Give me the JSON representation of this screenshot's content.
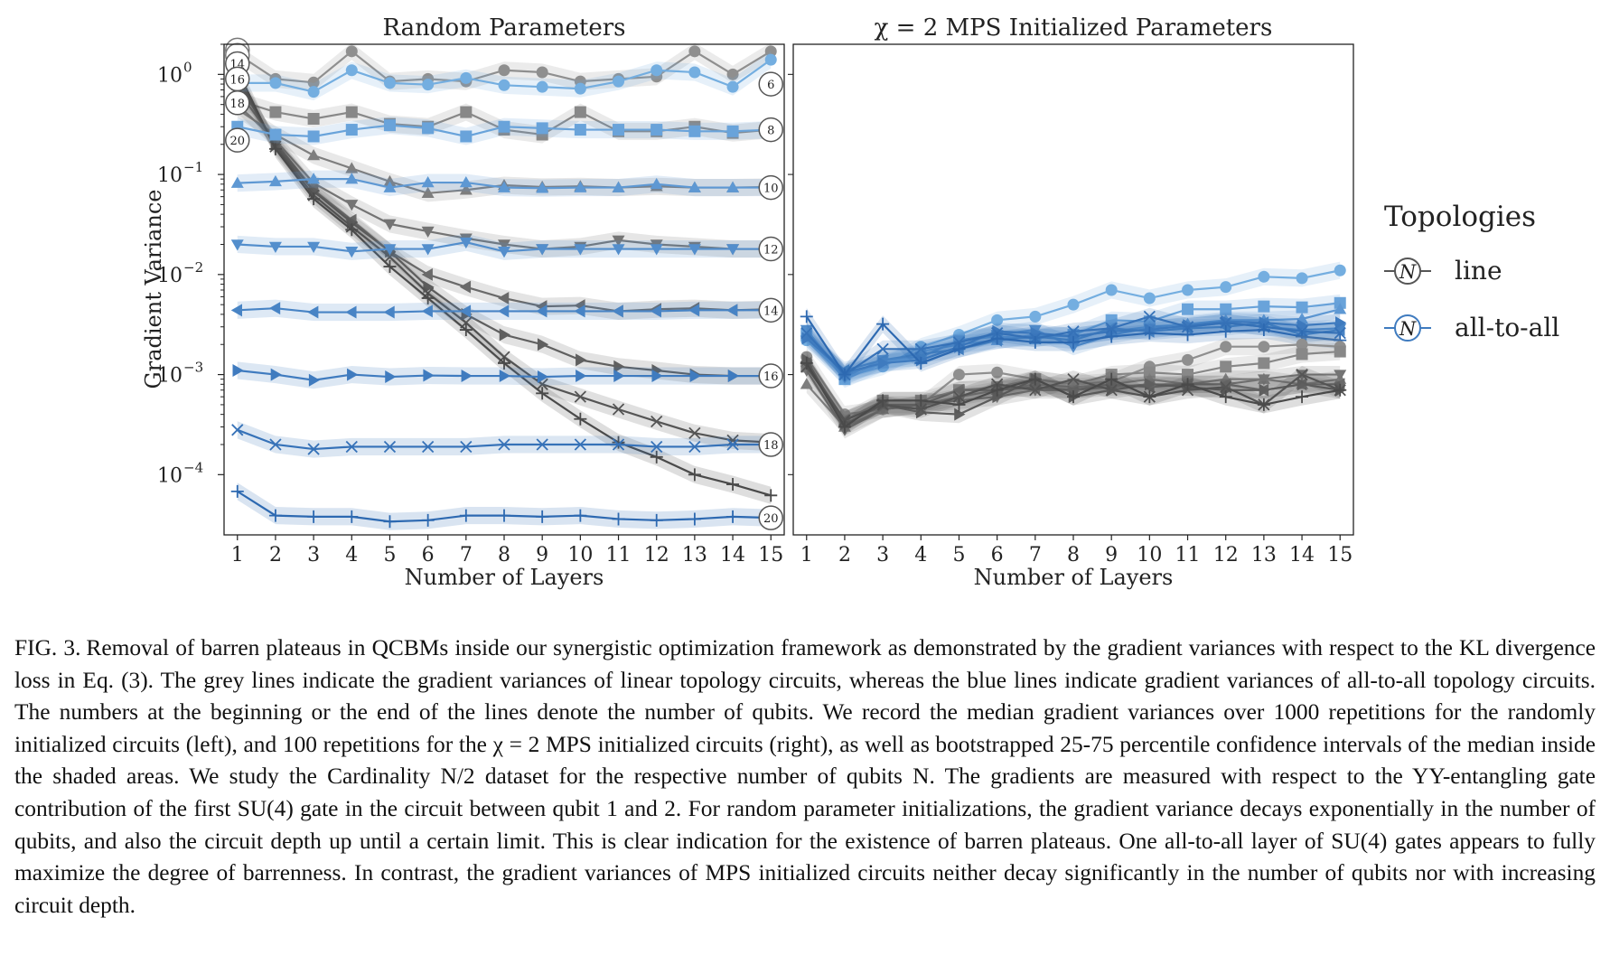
{
  "chart_data": [
    {
      "type": "line",
      "panel": "left",
      "title": "Random Parameters",
      "xlabel": "Number of Layers",
      "ylabel": "Gradient Variance",
      "yscale": "log",
      "ylim": [
        2.5e-05,
        2.0
      ],
      "xlim": [
        0.65,
        15.35
      ],
      "x": [
        1,
        2,
        3,
        4,
        5,
        6,
        7,
        8,
        9,
        10,
        11,
        12,
        13,
        14,
        15
      ],
      "x_tick_labels": [
        "1",
        "2",
        "3",
        "4",
        "5",
        "6",
        "7",
        "8",
        "9",
        "10",
        "11",
        "12",
        "13",
        "14",
        "15"
      ],
      "y_tick_labels": [
        {
          "value": 1,
          "label": "10",
          "exp": "0"
        },
        {
          "value": 0.1,
          "label": "10",
          "exp": "−1"
        },
        {
          "value": 0.01,
          "label": "10",
          "exp": "−2"
        },
        {
          "value": 0.001,
          "label": "10",
          "exp": "−3"
        },
        {
          "value": 0.0001,
          "label": "10",
          "exp": "−4"
        }
      ],
      "series": [
        {
          "name": "line 6",
          "topology": "line",
          "qubits": 6,
          "marker": "circle",
          "values": [
            1.6,
            0.9,
            0.83,
            1.7,
            0.85,
            0.9,
            0.85,
            1.1,
            1.05,
            0.85,
            0.9,
            0.95,
            1.7,
            1.0,
            1.7
          ]
        },
        {
          "name": "line 8",
          "topology": "line",
          "qubits": 8,
          "marker": "square",
          "values": [
            0.55,
            0.42,
            0.36,
            0.42,
            0.32,
            0.3,
            0.42,
            0.28,
            0.25,
            0.42,
            0.27,
            0.27,
            0.3,
            0.26,
            0.28
          ]
        },
        {
          "name": "line 10",
          "topology": "line",
          "qubits": 10,
          "marker": "triangle-up",
          "values": [
            0.45,
            0.25,
            0.155,
            0.115,
            0.085,
            0.065,
            0.07,
            0.078,
            0.075,
            0.076,
            0.074,
            0.076,
            0.074,
            0.074,
            0.075
          ]
        },
        {
          "name": "line 12",
          "topology": "line",
          "qubits": 12,
          "marker": "triangle-down",
          "values": [
            0.5,
            0.22,
            0.082,
            0.05,
            0.032,
            0.027,
            0.023,
            0.02,
            0.018,
            0.019,
            0.022,
            0.02,
            0.019,
            0.018,
            0.018
          ]
        },
        {
          "name": "line 14",
          "topology": "line",
          "qubits": 14,
          "marker": "triangle-left",
          "values": [
            0.7,
            0.21,
            0.07,
            0.035,
            0.017,
            0.01,
            0.0075,
            0.0058,
            0.0048,
            0.0049,
            0.0043,
            0.0045,
            0.0046,
            0.0044,
            0.0045
          ]
        },
        {
          "name": "line 16",
          "topology": "line",
          "qubits": 16,
          "marker": "triangle-right",
          "values": [
            0.85,
            0.2,
            0.068,
            0.033,
            0.017,
            0.0075,
            0.004,
            0.0025,
            0.002,
            0.0014,
            0.0012,
            0.0011,
            0.001,
            0.00097,
            0.00097
          ]
        },
        {
          "name": "line 18",
          "topology": "line",
          "qubits": 18,
          "marker": "x",
          "values": [
            0.95,
            0.19,
            0.062,
            0.03,
            0.015,
            0.0065,
            0.0033,
            0.0015,
            0.0008,
            0.0006,
            0.00045,
            0.00034,
            0.00026,
            0.00022,
            0.00021
          ]
        },
        {
          "name": "line 20",
          "topology": "line",
          "qubits": 20,
          "marker": "plus",
          "values": [
            1.1,
            0.18,
            0.057,
            0.028,
            0.012,
            0.0058,
            0.0028,
            0.0013,
            0.00065,
            0.00036,
            0.00021,
            0.00015,
            0.0001,
            8e-05,
            6.2e-05
          ]
        },
        {
          "name": "all 6",
          "topology": "all-to-all",
          "qubits": 6,
          "marker": "circle",
          "values": [
            0.82,
            0.82,
            0.67,
            1.1,
            0.82,
            0.79,
            0.92,
            0.78,
            0.75,
            0.72,
            0.85,
            1.1,
            1.05,
            0.75,
            1.4
          ]
        },
        {
          "name": "all 8",
          "topology": "all-to-all",
          "qubits": 8,
          "marker": "square",
          "values": [
            0.3,
            0.25,
            0.24,
            0.28,
            0.31,
            0.29,
            0.24,
            0.3,
            0.29,
            0.28,
            0.28,
            0.28,
            0.27,
            0.27,
            0.28
          ]
        },
        {
          "name": "all 10",
          "topology": "all-to-all",
          "qubits": 10,
          "marker": "triangle-up",
          "values": [
            0.082,
            0.085,
            0.09,
            0.09,
            0.074,
            0.083,
            0.083,
            0.074,
            0.073,
            0.074,
            0.074,
            0.08,
            0.074,
            0.074,
            0.074
          ]
        },
        {
          "name": "all 12",
          "topology": "all-to-all",
          "qubits": 12,
          "marker": "triangle-down",
          "values": [
            0.02,
            0.019,
            0.019,
            0.017,
            0.018,
            0.018,
            0.021,
            0.017,
            0.018,
            0.018,
            0.018,
            0.018,
            0.018,
            0.018,
            0.018
          ]
        },
        {
          "name": "all 14",
          "topology": "all-to-all",
          "qubits": 14,
          "marker": "triangle-left",
          "values": [
            0.0044,
            0.0046,
            0.0042,
            0.0042,
            0.0042,
            0.0043,
            0.0043,
            0.0043,
            0.0043,
            0.0043,
            0.0043,
            0.0043,
            0.0044,
            0.0044,
            0.0044
          ]
        },
        {
          "name": "all 16",
          "topology": "all-to-all",
          "qubits": 16,
          "marker": "triangle-right",
          "values": [
            0.0011,
            0.001,
            0.00088,
            0.001,
            0.00095,
            0.00098,
            0.00097,
            0.00097,
            0.00095,
            0.00097,
            0.00097,
            0.00097,
            0.00097,
            0.00097,
            0.00097
          ]
        },
        {
          "name": "all 18",
          "topology": "all-to-all",
          "qubits": 18,
          "marker": "x",
          "values": [
            0.00028,
            0.0002,
            0.00018,
            0.00019,
            0.00019,
            0.00019,
            0.00019,
            0.0002,
            0.0002,
            0.0002,
            0.0002,
            0.00019,
            0.00019,
            0.0002,
            0.0002
          ]
        },
        {
          "name": "all 20",
          "topology": "all-to-all",
          "qubits": 20,
          "marker": "plus",
          "values": [
            6.8e-05,
            3.9e-05,
            3.8e-05,
            3.8e-05,
            3.4e-05,
            3.5e-05,
            3.9e-05,
            3.9e-05,
            3.8e-05,
            3.9e-05,
            3.6e-05,
            3.5e-05,
            3.6e-05,
            3.8e-05,
            3.7e-05
          ]
        }
      ],
      "start_labels": [
        "14",
        "16",
        "18",
        "20"
      ],
      "end_labels": [
        "6",
        "8",
        "10",
        "12",
        "14",
        "16",
        "18",
        "20"
      ]
    },
    {
      "type": "line",
      "panel": "right",
      "title": "χ = 2 MPS Initialized Parameters",
      "xlabel": "Number of Layers",
      "yscale": "log",
      "ylim": [
        2.5e-05,
        2.0
      ],
      "xlim": [
        0.65,
        15.35
      ],
      "x": [
        1,
        2,
        3,
        4,
        5,
        6,
        7,
        8,
        9,
        10,
        11,
        12,
        13,
        14,
        15
      ],
      "x_tick_labels": [
        "1",
        "2",
        "3",
        "4",
        "5",
        "6",
        "7",
        "8",
        "9",
        "10",
        "11",
        "12",
        "13",
        "14",
        "15"
      ],
      "series": [
        {
          "name": "all 6",
          "topology": "all-to-all",
          "qubits": 6,
          "marker": "circle",
          "values": [
            0.0022,
            0.00095,
            0.0012,
            0.0019,
            0.0025,
            0.0035,
            0.0038,
            0.005,
            0.007,
            0.0058,
            0.007,
            0.0075,
            0.0095,
            0.0092,
            0.011
          ]
        },
        {
          "name": "all 8",
          "topology": "all-to-all",
          "qubits": 8,
          "marker": "square",
          "values": [
            0.0025,
            0.0009,
            0.0013,
            0.0015,
            0.0022,
            0.0024,
            0.0023,
            0.0025,
            0.0035,
            0.0034,
            0.0045,
            0.0045,
            0.0048,
            0.0047,
            0.0052
          ]
        },
        {
          "name": "all 10",
          "topology": "all-to-all",
          "qubits": 10,
          "marker": "triangle-up",
          "values": [
            0.0027,
            0.001,
            0.0013,
            0.0017,
            0.002,
            0.0022,
            0.0025,
            0.0024,
            0.0027,
            0.003,
            0.0032,
            0.0035,
            0.0035,
            0.0036,
            0.0045
          ]
        },
        {
          "name": "all 12",
          "topology": "all-to-all",
          "qubits": 12,
          "marker": "triangle-down",
          "values": [
            0.0028,
            0.00095,
            0.0014,
            0.0015,
            0.0022,
            0.0025,
            0.0028,
            0.0019,
            0.0025,
            0.0029,
            0.003,
            0.0033,
            0.003,
            0.0028,
            0.0029
          ]
        },
        {
          "name": "all 14",
          "topology": "all-to-all",
          "qubits": 14,
          "marker": "triangle-left",
          "values": [
            0.0024,
            0.0011,
            0.0014,
            0.0016,
            0.0018,
            0.0022,
            0.0024,
            0.0022,
            0.0029,
            0.0027,
            0.0029,
            0.003,
            0.0033,
            0.0025,
            0.0028
          ]
        },
        {
          "name": "all 16",
          "topology": "all-to-all",
          "qubits": 16,
          "marker": "triangle-right",
          "values": [
            0.0023,
            0.00105,
            0.0013,
            0.0014,
            0.0019,
            0.0027,
            0.0026,
            0.0024,
            0.0027,
            0.0028,
            0.0031,
            0.0034,
            0.0033,
            0.0031,
            0.0033
          ]
        },
        {
          "name": "all 18",
          "topology": "all-to-all",
          "qubits": 18,
          "marker": "x",
          "values": [
            0.0026,
            0.001,
            0.0018,
            0.0018,
            0.0021,
            0.0026,
            0.0023,
            0.0027,
            0.0029,
            0.0038,
            0.003,
            0.0033,
            0.003,
            0.0027,
            0.0026
          ]
        },
        {
          "name": "all 20",
          "topology": "all-to-all",
          "qubits": 20,
          "marker": "plus",
          "values": [
            0.0038,
            0.001,
            0.0032,
            0.0013,
            0.0018,
            0.0023,
            0.0021,
            0.0021,
            0.0024,
            0.0026,
            0.0025,
            0.0027,
            0.0028,
            0.0024,
            0.0022
          ]
        },
        {
          "name": "line 6",
          "topology": "line",
          "qubits": 6,
          "marker": "circle",
          "values": [
            0.0015,
            0.0004,
            0.00045,
            0.0005,
            0.001,
            0.00105,
            0.0009,
            0.0008,
            0.00085,
            0.0012,
            0.0014,
            0.0019,
            0.0019,
            0.002,
            0.0019
          ]
        },
        {
          "name": "line 8",
          "topology": "line",
          "qubits": 8,
          "marker": "square",
          "values": [
            0.0012,
            0.00035,
            0.00055,
            0.00055,
            0.0007,
            0.00075,
            0.0009,
            0.0008,
            0.001,
            0.00105,
            0.001,
            0.0012,
            0.0013,
            0.0016,
            0.0017
          ]
        },
        {
          "name": "line 10",
          "topology": "line",
          "qubits": 10,
          "marker": "triangle-up",
          "values": [
            0.0008,
            0.0003,
            0.00045,
            0.0005,
            0.0006,
            0.0007,
            0.0008,
            0.00075,
            0.0008,
            0.0009,
            0.0008,
            0.0009,
            0.0009,
            0.0008,
            0.0009
          ]
        },
        {
          "name": "line 12",
          "topology": "line",
          "qubits": 12,
          "marker": "triangle-down",
          "values": [
            0.0011,
            0.00028,
            0.00045,
            0.0005,
            0.00055,
            0.0006,
            0.0007,
            0.0007,
            0.00075,
            0.0008,
            0.0008,
            0.0008,
            0.0009,
            0.001,
            0.001
          ]
        },
        {
          "name": "line 14",
          "topology": "line",
          "qubits": 14,
          "marker": "triangle-left",
          "values": [
            0.0013,
            0.00035,
            0.0005,
            0.0005,
            0.0007,
            0.0007,
            0.00075,
            0.0007,
            0.0008,
            0.00075,
            0.0008,
            0.0008,
            0.0007,
            0.0008,
            0.0008
          ]
        },
        {
          "name": "line 16",
          "topology": "line",
          "qubits": 16,
          "marker": "triangle-right",
          "values": [
            0.0014,
            0.00032,
            0.0005,
            0.00042,
            0.0004,
            0.0006,
            0.0009,
            0.0006,
            0.0007,
            0.0008,
            0.00075,
            0.0007,
            0.0007,
            0.0008,
            0.0007
          ]
        },
        {
          "name": "line 18",
          "topology": "line",
          "qubits": 18,
          "marker": "x",
          "values": [
            0.0012,
            0.00035,
            0.0005,
            0.00045,
            0.0006,
            0.0008,
            0.0007,
            0.0009,
            0.0007,
            0.0006,
            0.0007,
            0.00075,
            0.0005,
            0.001,
            0.0007
          ]
        },
        {
          "name": "line 20",
          "topology": "line",
          "qubits": 20,
          "marker": "plus",
          "values": [
            0.0013,
            0.0003,
            0.00055,
            0.00055,
            0.0005,
            0.0007,
            0.0009,
            0.0006,
            0.0009,
            0.0006,
            0.0008,
            0.0006,
            0.0005,
            0.0006,
            0.0007
          ]
        }
      ]
    }
  ],
  "legend": {
    "title": "Topologies",
    "placement": "right",
    "symbol_text": "N",
    "entries": [
      {
        "label": "line",
        "color": "#555555"
      },
      {
        "label": "all-to-all",
        "color": "#3f7bbf"
      }
    ]
  },
  "colors": {
    "line": [
      "#8f8f8f",
      "#888888",
      "#7e7e7e",
      "#747474",
      "#6a6a6a",
      "#5f5f5f",
      "#555555",
      "#4a4a4a"
    ],
    "all": [
      "#74aee0",
      "#69a3da",
      "#5e98d3",
      "#538ecc",
      "#4884c5",
      "#3f7bbf",
      "#3672b8",
      "#2d69b1"
    ],
    "axes": "#222222"
  },
  "caption": {
    "label": "FIG. 3.",
    "lines": [
      "Removal of barren plateaus in QCBMs inside our synergistic optimization framework as demonstrated by the gradient variances with",
      "respect to the KL divergence loss in Eq. (3). The grey lines indicate the gradient variances of linear topology circuits, whereas the blue lines",
      "indicate gradient variances of all-to-all topology circuits. The numbers at the beginning or the end of the lines denote the number of qubits. We",
      "record the median gradient variances over 1000 repetitions for the randomly initialized circuits (left), and 100 repetitions for the χ = 2 MPS",
      "initialized circuits (right), as well as bootstrapped 25-75 percentile confidence intervals of the median inside the shaded areas. We study the",
      "Cardinality N/2 dataset for the respective number of qubits N. The gradients are measured with respect to the YY-entangling gate contribution",
      "of the first SU(4) gate in the circuit between qubit 1 and 2. For random parameter initializations, the gradient variance decays exponentially",
      "in the number of qubits, and also the circuit depth up until a certain limit. This is clear indication for the existence of barren plateaus. One",
      "all-to-all layer of SU(4) gates appears to fully maximize the degree of barrenness. In contrast, the gradient variances of MPS initialized circuits",
      "neither decay significantly in the number of qubits nor with increasing circuit depth."
    ]
  }
}
